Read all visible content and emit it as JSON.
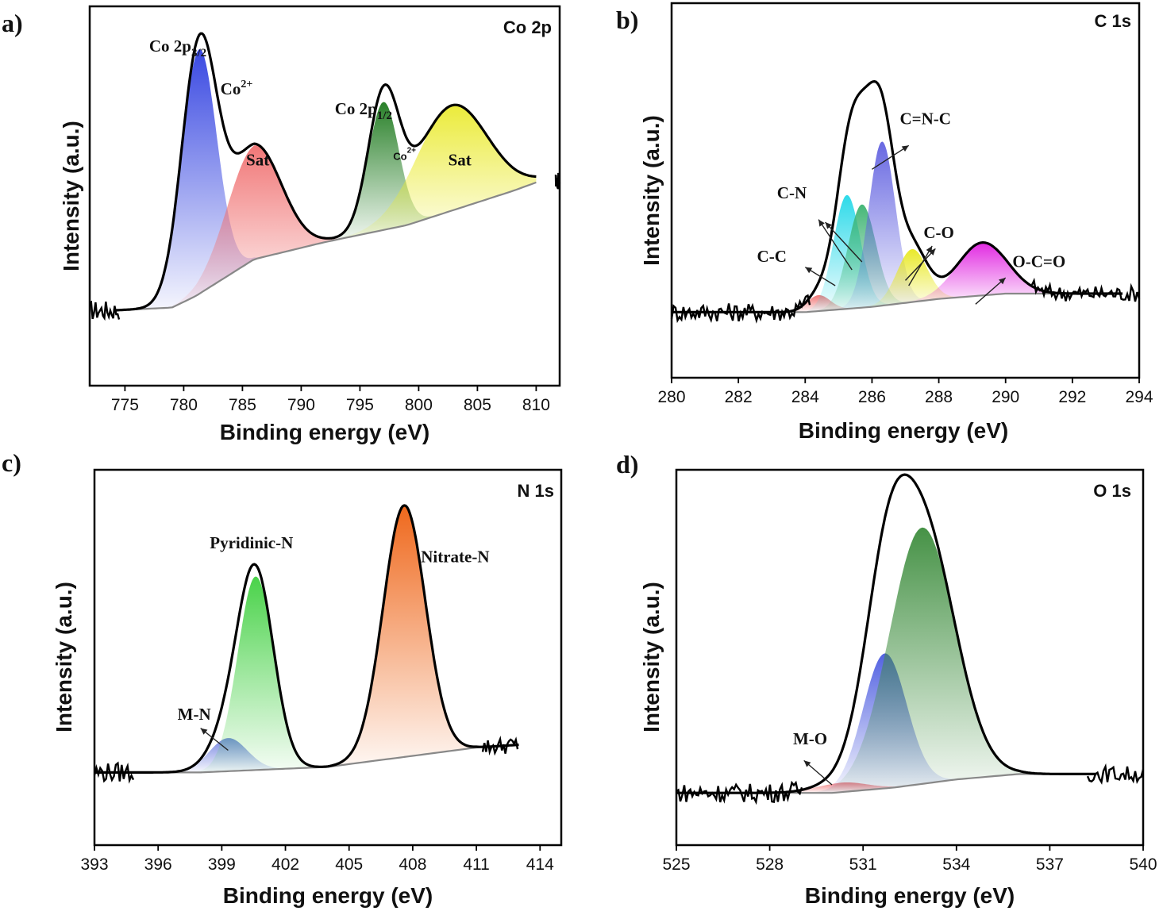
{
  "chart_data": [
    {
      "type": "area",
      "panel_label": "a)",
      "element_label": "Co 2p",
      "xlabel": "Binding energy (eV)",
      "ylabel": "Intensity (a.u.)",
      "xlim": [
        772,
        812
      ],
      "ylim": [
        0,
        1.2
      ],
      "ticks": [
        775,
        780,
        785,
        790,
        795,
        800,
        805,
        810
      ],
      "tick_labels": [
        "775",
        "780",
        "785",
        "790",
        "795",
        "800",
        "805",
        "810"
      ],
      "baseline": [
        [
          774,
          0.22
        ],
        [
          779,
          0.23
        ],
        [
          781,
          0.27
        ],
        [
          786,
          0.4
        ],
        [
          792,
          0.46
        ],
        [
          799,
          0.52
        ],
        [
          808,
          0.64
        ],
        [
          810,
          0.67
        ]
      ],
      "components": [
        {
          "center": 781.3,
          "height": 0.86,
          "sigma": 1.5,
          "color": "#2f3fe0"
        },
        {
          "center": 786.0,
          "height": 0.4,
          "sigma": 2.3,
          "color": "#f07070"
        },
        {
          "center": 797.0,
          "height": 0.45,
          "sigma": 1.3,
          "color": "#1e7a1e"
        },
        {
          "center": 802.8,
          "height": 0.37,
          "sigma": 3.0,
          "color": "#eaea30"
        }
      ],
      "annotations": [
        {
          "text": "Co 2p",
          "sub": "3/2",
          "sup": "",
          "x": 779.5,
          "y": 1.13
        },
        {
          "text": "Co",
          "sub": "",
          "sup": "2+",
          "x": 784.5,
          "y": 0.98
        },
        {
          "text": "Sat",
          "sub": "",
          "sup": "",
          "x": 786.3,
          "y": 0.73
        },
        {
          "text": "Co 2p",
          "sub": "1/2",
          "sup": "",
          "x": 795.3,
          "y": 0.91
        },
        {
          "text": "Co",
          "sub": "",
          "sup": "2+",
          "x": 798.8,
          "y": 0.75,
          "small": true
        },
        {
          "text": "Sat",
          "sub": "",
          "sup": "",
          "x": 803.5,
          "y": 0.73
        }
      ],
      "arrows": []
    },
    {
      "type": "area",
      "panel_label": "b)",
      "element_label": "C 1s",
      "xlabel": "Binding energy (eV)",
      "ylabel": "Intensity (a.u.)",
      "xlim": [
        280,
        294
      ],
      "ylim": [
        0,
        1.2
      ],
      "ticks": [
        280,
        282,
        284,
        286,
        288,
        290,
        292,
        294
      ],
      "tick_labels": [
        "280",
        "282",
        "284",
        "286",
        "288",
        "290",
        "292",
        "294"
      ],
      "baseline": [
        [
          280,
          0.14
        ],
        [
          284,
          0.14
        ],
        [
          286,
          0.16
        ],
        [
          288,
          0.19
        ],
        [
          290,
          0.21
        ],
        [
          292,
          0.21
        ],
        [
          293.5,
          0.21
        ]
      ],
      "components": [
        {
          "center": 284.4,
          "height": 0.06,
          "sigma": 0.35,
          "color": "#f07070"
        },
        {
          "center": 285.25,
          "height": 0.43,
          "sigma": 0.4,
          "color": "#22d8e8"
        },
        {
          "center": 285.7,
          "height": 0.39,
          "sigma": 0.42,
          "color": "#3cb371"
        },
        {
          "center": 286.3,
          "height": 0.62,
          "sigma": 0.4,
          "color": "#6060e0"
        },
        {
          "center": 287.2,
          "height": 0.2,
          "sigma": 0.45,
          "color": "#e8e820"
        },
        {
          "center": 289.3,
          "height": 0.2,
          "sigma": 0.75,
          "color": "#e020e0"
        }
      ],
      "annotations": [
        {
          "text": "C=N-C",
          "sub": "",
          "sup": "",
          "x": 287.6,
          "y": 0.85
        },
        {
          "text": "C-N",
          "sub": "",
          "sup": "",
          "x": 283.6,
          "y": 0.57
        },
        {
          "text": "C-C",
          "sub": "",
          "sup": "",
          "x": 283.0,
          "y": 0.33
        },
        {
          "text": "C-O",
          "sub": "",
          "sup": "",
          "x": 288.0,
          "y": 0.42
        },
        {
          "text": "O-C=O",
          "sub": "",
          "sup": "",
          "x": 291.0,
          "y": 0.31
        }
      ],
      "arrows": [
        {
          "from": [
            286.0,
            0.68
          ],
          "to": [
            287.1,
            0.77
          ]
        },
        {
          "from": [
            285.4,
            0.3
          ],
          "to": [
            284.4,
            0.49
          ]
        },
        {
          "from": [
            285.7,
            0.33
          ],
          "to": [
            284.6,
            0.48
          ]
        },
        {
          "from": [
            284.9,
            0.24
          ],
          "to": [
            284.0,
            0.31
          ]
        },
        {
          "from": [
            287.0,
            0.26
          ],
          "to": [
            287.9,
            0.38
          ]
        },
        {
          "from": [
            287.1,
            0.24
          ],
          "to": [
            287.8,
            0.39
          ]
        },
        {
          "from": [
            289.1,
            0.17
          ],
          "to": [
            290.0,
            0.27
          ]
        }
      ]
    },
    {
      "type": "area",
      "panel_label": "c)",
      "element_label": "N 1s",
      "xlabel": "Binding energy (eV)",
      "ylabel": "Intensity (a.u.)",
      "xlim": [
        393,
        415
      ],
      "ylim": [
        0,
        1.2
      ],
      "ticks": [
        393,
        396,
        399,
        402,
        405,
        408,
        411,
        414
      ],
      "tick_labels": [
        "393",
        "396",
        "399",
        "402",
        "405",
        "408",
        "411",
        "414"
      ],
      "baseline": [
        [
          393,
          0.22
        ],
        [
          398,
          0.22
        ],
        [
          401,
          0.23
        ],
        [
          404,
          0.24
        ],
        [
          407,
          0.27
        ],
        [
          411,
          0.31
        ],
        [
          413,
          0.32
        ]
      ],
      "components": [
        {
          "center": 399.3,
          "height": 0.12,
          "sigma": 0.9,
          "color": "#7080e0"
        },
        {
          "center": 400.6,
          "height": 0.7,
          "sigma": 0.85,
          "color": "#40d040"
        },
        {
          "center": 407.6,
          "height": 0.91,
          "sigma": 1.0,
          "color": "#ee6010"
        }
      ],
      "annotations": [
        {
          "text": "Pyridinic-N",
          "sub": "",
          "sup": "",
          "x": 400.4,
          "y": 1.03
        },
        {
          "text": "Nitrate-N",
          "sub": "",
          "sup": "",
          "x": 410.0,
          "y": 0.98
        },
        {
          "text": "M-N",
          "sub": "",
          "sup": "",
          "x": 397.7,
          "y": 0.41
        }
      ],
      "arrows": [
        {
          "from": [
            399.3,
            0.3
          ],
          "to": [
            398.0,
            0.38
          ]
        }
      ]
    },
    {
      "type": "area",
      "panel_label": "d)",
      "element_label": "O 1s",
      "xlabel": "Binding energy (eV)",
      "ylabel": "Intensity (a.u.)",
      "xlim": [
        525,
        540
      ],
      "ylim": [
        0,
        1.2
      ],
      "ticks": [
        525,
        528,
        531,
        534,
        537,
        540
      ],
      "tick_labels": [
        "525",
        "528",
        "531",
        "534",
        "537",
        "540"
      ],
      "baseline": [
        [
          525,
          0.12
        ],
        [
          530,
          0.12
        ],
        [
          532,
          0.14
        ],
        [
          534,
          0.17
        ],
        [
          536,
          0.19
        ],
        [
          538.5,
          0.19
        ]
      ],
      "components": [
        {
          "center": 530.3,
          "height": 0.035,
          "sigma": 0.8,
          "color": "#f07070"
        },
        {
          "center": 531.7,
          "height": 0.5,
          "sigma": 0.7,
          "color": "#4a5ae0"
        },
        {
          "center": 532.9,
          "height": 0.95,
          "sigma": 1.05,
          "color": "#3c8c3c"
        }
      ],
      "annotations": [
        {
          "text": "M-O",
          "sub": "",
          "sup": "",
          "x": 529.3,
          "y": 0.3
        }
      ],
      "arrows": [
        {
          "from": [
            530.0,
            0.15
          ],
          "to": [
            529.1,
            0.24
          ]
        }
      ]
    }
  ]
}
